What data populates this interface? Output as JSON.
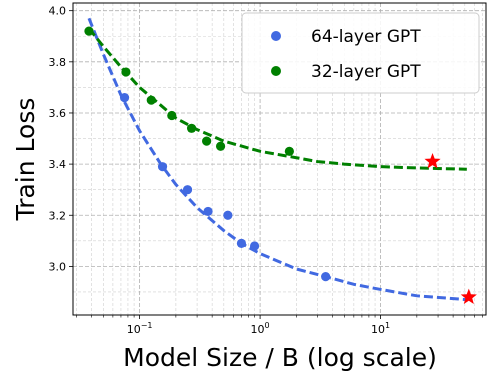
{
  "chart_data": {
    "type": "scatter",
    "title": "",
    "xlabel": "Model Size / B (log scale)",
    "ylabel": "Train Loss",
    "xscale": "log",
    "xlim": [
      0.028,
      75
    ],
    "ylim": [
      2.81,
      4.03
    ],
    "grid": "both major and minor, dashed",
    "legend_position": "upper right",
    "x_ticks": [
      {
        "value": 0.1,
        "base": "10",
        "exp": "−1"
      },
      {
        "value": 1,
        "base": "10",
        "exp": "0"
      },
      {
        "value": 10,
        "base": "10",
        "exp": "1"
      }
    ],
    "y_ticks": [
      {
        "value": 3.0,
        "label": "3.0"
      },
      {
        "value": 3.2,
        "label": "3.2"
      },
      {
        "value": 3.4,
        "label": "3.4"
      },
      {
        "value": 3.6,
        "label": "3.6"
      },
      {
        "value": 3.8,
        "label": "3.8"
      },
      {
        "value": 4.0,
        "label": "4.0"
      }
    ],
    "series": [
      {
        "name": "64-layer GPT",
        "color": "#4169E1",
        "points": [
          {
            "x": 0.075,
            "y": 3.66
          },
          {
            "x": 0.155,
            "y": 3.39
          },
          {
            "x": 0.25,
            "y": 3.3
          },
          {
            "x": 0.37,
            "y": 3.215
          },
          {
            "x": 0.54,
            "y": 3.2
          },
          {
            "x": 0.7,
            "y": 3.09
          },
          {
            "x": 0.9,
            "y": 3.08
          },
          {
            "x": 3.5,
            "y": 2.96
          }
        ],
        "fit_curve": [
          {
            "x": 0.038,
            "y": 3.97
          },
          {
            "x": 0.05,
            "y": 3.83
          },
          {
            "x": 0.07,
            "y": 3.67
          },
          {
            "x": 0.1,
            "y": 3.53
          },
          {
            "x": 0.15,
            "y": 3.4
          },
          {
            "x": 0.2,
            "y": 3.32
          },
          {
            "x": 0.3,
            "y": 3.23
          },
          {
            "x": 0.5,
            "y": 3.14
          },
          {
            "x": 0.7,
            "y": 3.09
          },
          {
            "x": 1,
            "y": 3.05
          },
          {
            "x": 2,
            "y": 2.99
          },
          {
            "x": 3.5,
            "y": 2.96
          },
          {
            "x": 6,
            "y": 2.93
          },
          {
            "x": 10,
            "y": 2.91
          },
          {
            "x": 20,
            "y": 2.885
          },
          {
            "x": 52,
            "y": 2.87
          }
        ],
        "predicted": {
          "x": 54,
          "y": 2.88
        }
      },
      {
        "name": "32-layer GPT",
        "color": "#008000",
        "points": [
          {
            "x": 0.038,
            "y": 3.92
          },
          {
            "x": 0.077,
            "y": 3.76
          },
          {
            "x": 0.125,
            "y": 3.65
          },
          {
            "x": 0.185,
            "y": 3.59
          },
          {
            "x": 0.27,
            "y": 3.54
          },
          {
            "x": 0.36,
            "y": 3.49
          },
          {
            "x": 0.47,
            "y": 3.47
          },
          {
            "x": 1.75,
            "y": 3.45
          }
        ],
        "fit_curve": [
          {
            "x": 0.038,
            "y": 3.93
          },
          {
            "x": 0.05,
            "y": 3.86
          },
          {
            "x": 0.07,
            "y": 3.78
          },
          {
            "x": 0.1,
            "y": 3.7
          },
          {
            "x": 0.15,
            "y": 3.63
          },
          {
            "x": 0.2,
            "y": 3.58
          },
          {
            "x": 0.3,
            "y": 3.535
          },
          {
            "x": 0.5,
            "y": 3.49
          },
          {
            "x": 1,
            "y": 3.45
          },
          {
            "x": 2,
            "y": 3.425
          },
          {
            "x": 3,
            "y": 3.41
          },
          {
            "x": 5,
            "y": 3.4
          },
          {
            "x": 10,
            "y": 3.39
          },
          {
            "x": 20,
            "y": 3.385
          },
          {
            "x": 52,
            "y": 3.38
          }
        ],
        "predicted": {
          "x": 27,
          "y": 3.41
        }
      }
    ],
    "predicted_marker_color": "#FF0000"
  }
}
